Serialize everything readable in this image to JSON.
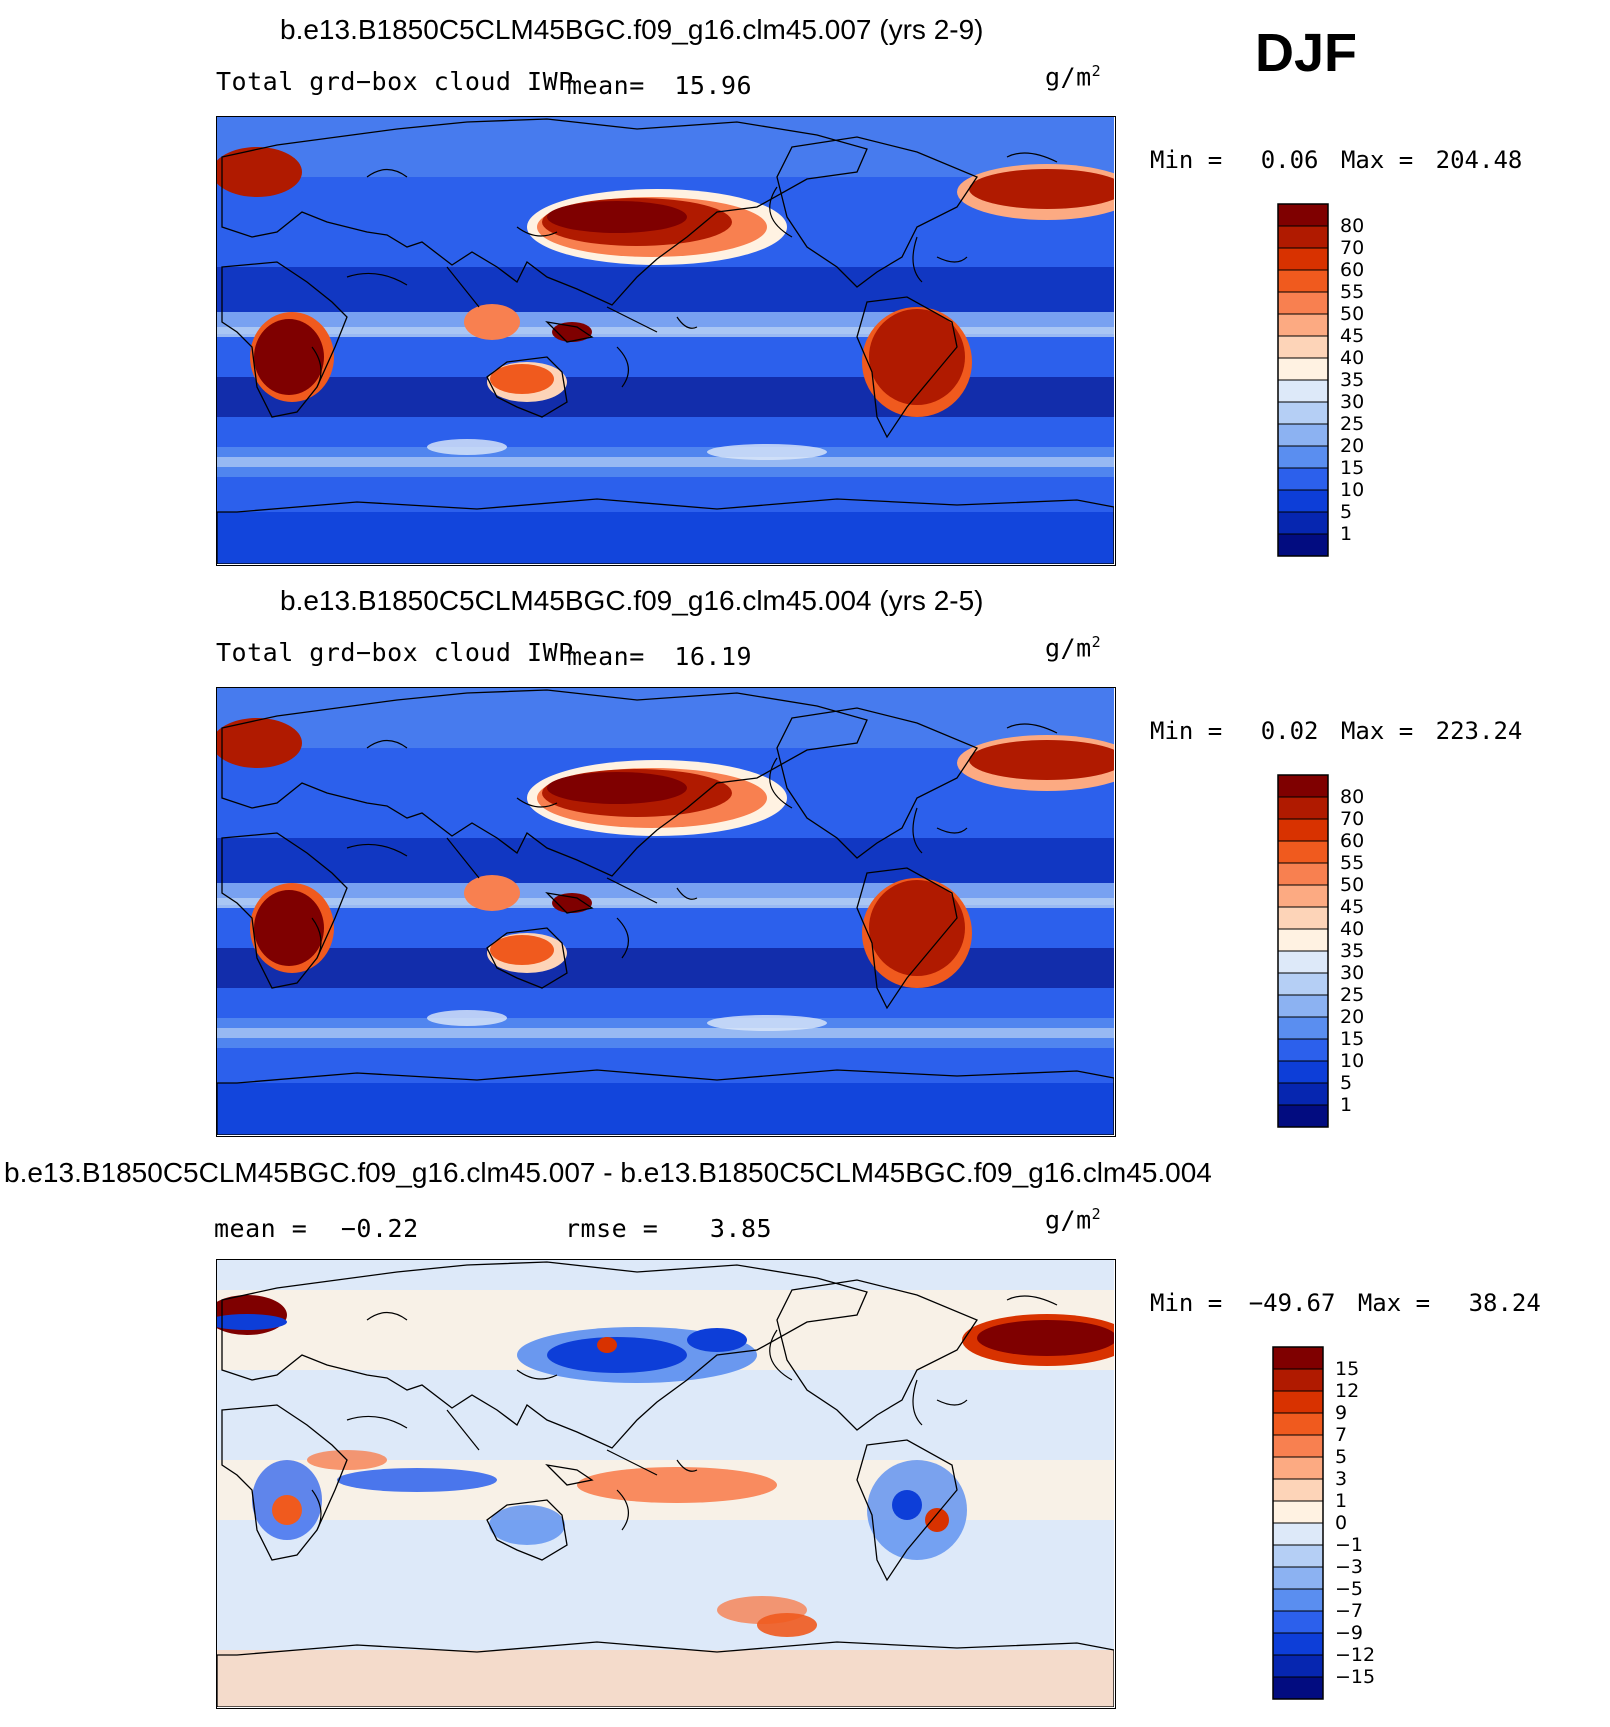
{
  "season": "DJF",
  "units_base": "g/m",
  "units_exp": "2",
  "panels": [
    {
      "id": "case",
      "title": "b.e13.B1850C5CLM45BGC.f09_g16.clm45.007 (yrs 2-9)",
      "left_label": "Total grd−box cloud IWP",
      "stat1_label": "mean=",
      "stat1_value": "15.96",
      "min_label": "Min =",
      "min_value": "0.06",
      "max_label": "Max =",
      "max_value": "204.48",
      "colorbar": {
        "labels": [
          "80",
          "70",
          "60",
          "55",
          "50",
          "45",
          "40",
          "35",
          "30",
          "25",
          "20",
          "15",
          "10",
          "5",
          "1"
        ],
        "colors": [
          "#7f0000",
          "#b01a00",
          "#d83200",
          "#f05a1e",
          "#f88050",
          "#fcaa82",
          "#fdd4b8",
          "#fff2e2",
          "#dde9f9",
          "#b5cff5",
          "#8cb2f2",
          "#5a8ef0",
          "#2c60ec",
          "#0d3ed8",
          "#0626b0",
          "#020c80"
        ]
      }
    },
    {
      "id": "control",
      "title": "b.e13.B1850C5CLM45BGC.f09_g16.clm45.004 (yrs 2-5)",
      "left_label": "Total grd−box cloud IWP",
      "stat1_label": "mean=",
      "stat1_value": "16.19",
      "min_label": "Min =",
      "min_value": "0.02",
      "max_label": "Max =",
      "max_value": "223.24",
      "colorbar": {
        "labels": [
          "80",
          "70",
          "60",
          "55",
          "50",
          "45",
          "40",
          "35",
          "30",
          "25",
          "20",
          "15",
          "10",
          "5",
          "1"
        ],
        "colors": [
          "#7f0000",
          "#b01a00",
          "#d83200",
          "#f05a1e",
          "#f88050",
          "#fcaa82",
          "#fdd4b8",
          "#fff2e2",
          "#dde9f9",
          "#b5cff5",
          "#8cb2f2",
          "#5a8ef0",
          "#2c60ec",
          "#0d3ed8",
          "#0626b0",
          "#020c80"
        ]
      }
    },
    {
      "id": "difference",
      "title": "b.e13.B1850C5CLM45BGC.f09_g16.clm45.007 - b.e13.B1850C5CLM45BGC.f09_g16.clm45.004",
      "left_label": "mean =",
      "left_value": "−0.22",
      "stat1_label": "rmse =",
      "stat1_value": "3.85",
      "min_label": "Min =",
      "min_value": "−49.67",
      "max_label": "Max =",
      "max_value": "38.24",
      "colorbar": {
        "labels": [
          "15",
          "12",
          "9",
          "7",
          "5",
          "3",
          "1",
          "0",
          "−1",
          "−3",
          "−5",
          "−7",
          "−9",
          "−12",
          "−15"
        ],
        "colors": [
          "#7f0000",
          "#b01a00",
          "#d83200",
          "#f05a1e",
          "#f88050",
          "#fcaa82",
          "#fdd4b8",
          "#fff2e2",
          "#dde9f9",
          "#b5cff5",
          "#8cb2f2",
          "#5a8ef0",
          "#2c60ec",
          "#0d3ed8",
          "#0626b0",
          "#020c80"
        ]
      }
    }
  ]
}
